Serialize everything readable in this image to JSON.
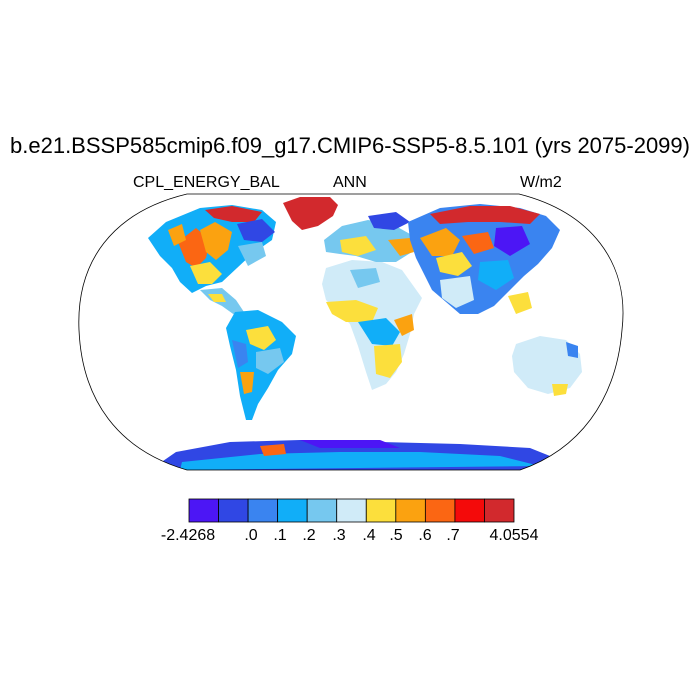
{
  "title": "b.e21.BSSP585cmip6.f09_g17.CMIP6-SSP5-8.5.101 (yrs 2075-2099)",
  "variable": "CPL_ENERGY_BAL",
  "season": "ANN",
  "units": "W/m2",
  "colorbar": {
    "colors": [
      "#4c16f5",
      "#3047e4",
      "#3a84f0",
      "#11aef8",
      "#76c8ef",
      "#d0ebf8",
      "#fcdf3c",
      "#fba210",
      "#fb6613",
      "#f40a0a",
      "#d2292d"
    ],
    "labels": [
      "-2.4268",
      ".0",
      ".1",
      ".2",
      ".3",
      ".4",
      ".5",
      ".6",
      ".7",
      "4.0554"
    ]
  }
}
